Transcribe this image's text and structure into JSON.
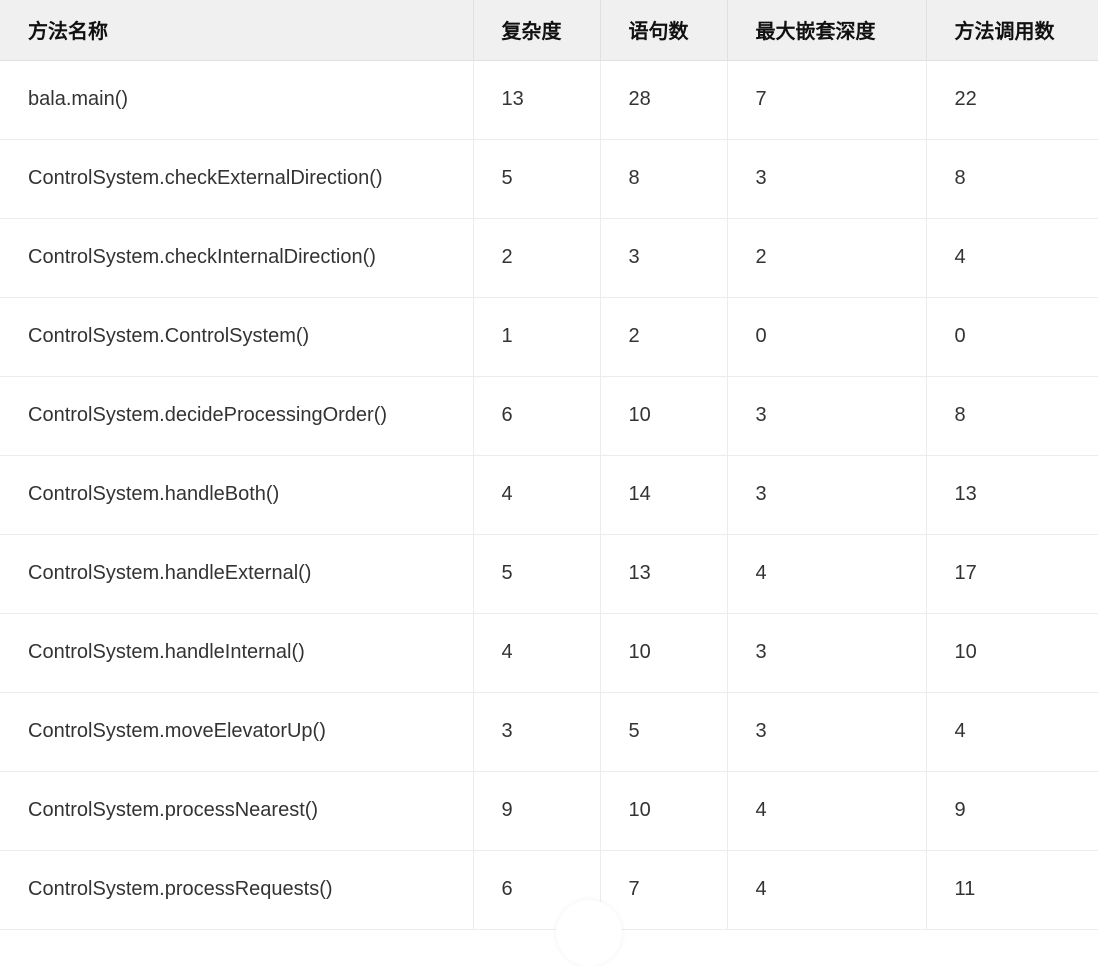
{
  "table": {
    "headers": [
      "方法名称",
      "复杂度",
      "语句数",
      "最大嵌套深度",
      "方法调用数"
    ],
    "rows": [
      [
        "bala.main()",
        "13",
        "28",
        "7",
        "22"
      ],
      [
        "ControlSystem.checkExternalDirection()",
        "5",
        "8",
        "3",
        "8"
      ],
      [
        "ControlSystem.checkInternalDirection()",
        "2",
        "3",
        "2",
        "4"
      ],
      [
        "ControlSystem.ControlSystem()",
        "1",
        "2",
        "0",
        "0"
      ],
      [
        "ControlSystem.decideProcessingOrder()",
        "6",
        "10",
        "3",
        "8"
      ],
      [
        "ControlSystem.handleBoth()",
        "4",
        "14",
        "3",
        "13"
      ],
      [
        "ControlSystem.handleExternal()",
        "5",
        "13",
        "4",
        "17"
      ],
      [
        "ControlSystem.handleInternal()",
        "4",
        "10",
        "3",
        "10"
      ],
      [
        "ControlSystem.moveElevatorUp()",
        "3",
        "5",
        "3",
        "4"
      ],
      [
        "ControlSystem.processNearest()",
        "9",
        "10",
        "4",
        "9"
      ],
      [
        "ControlSystem.processRequests()",
        "6",
        "7",
        "4",
        "11"
      ]
    ]
  },
  "colors": {
    "header_bg": "#f0f0f0",
    "border": "#ececec",
    "text": "#333333"
  }
}
